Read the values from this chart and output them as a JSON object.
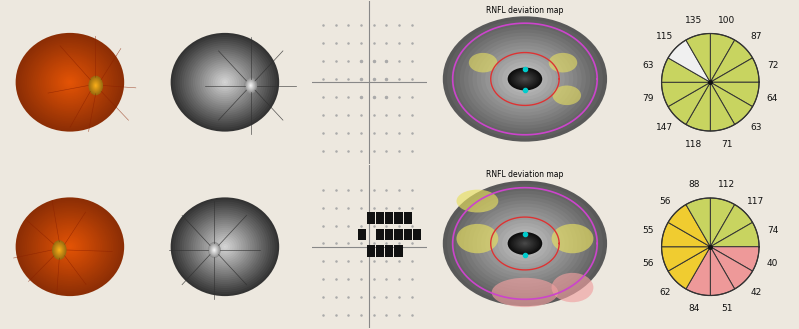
{
  "chart1": {
    "values": [
      100,
      87,
      72,
      64,
      63,
      71,
      118,
      147,
      79,
      63,
      115,
      135
    ],
    "colors": [
      "#c8d460",
      "#c8d460",
      "#c8d460",
      "#c8d460",
      "#c8d460",
      "#c8d460",
      "#c8d460",
      "#c8d460",
      "#c8d460",
      "#c8d460",
      "#f0f0f0",
      "#c8d460"
    ],
    "labels": [
      "100",
      "87",
      "72",
      "64",
      "63",
      "71",
      "118",
      "147",
      "79",
      "63",
      "115",
      "135"
    ]
  },
  "chart2": {
    "values": [
      112,
      117,
      74,
      40,
      42,
      51,
      84,
      62,
      56,
      55,
      56,
      88
    ],
    "colors": [
      "#c8d460",
      "#c8d460",
      "#c8d460",
      "#ee9999",
      "#ee9999",
      "#ee9999",
      "#ee9999",
      "#f0cc30",
      "#f0cc30",
      "#f0cc30",
      "#f0cc30",
      "#c8d460"
    ],
    "labels": [
      "112",
      "117",
      "74",
      "40",
      "42",
      "51",
      "84",
      "62",
      "56",
      "55",
      "56",
      "88"
    ]
  },
  "rnfl_title": "RNFL deviation map",
  "bg_color": "#ede8df",
  "edge_color": "#333333",
  "text_color": "#111111",
  "font_size": 6.5,
  "label_r": 1.32,
  "col1_bg": "#0a0500",
  "col2_bg": "#484848",
  "col3_bg": "#f0f0ee",
  "col4_bg": "#a8a8a0",
  "col3_line": "#888888",
  "dot_color": "#aaaaaa",
  "black_square_color": "#111111",
  "gray_line": "#999999",
  "rnfl_map1_bg": "#909090",
  "rnfl_map2_bg": "#909090",
  "border_color": "#aaaaaa",
  "teal_border": "#4aa8c0"
}
